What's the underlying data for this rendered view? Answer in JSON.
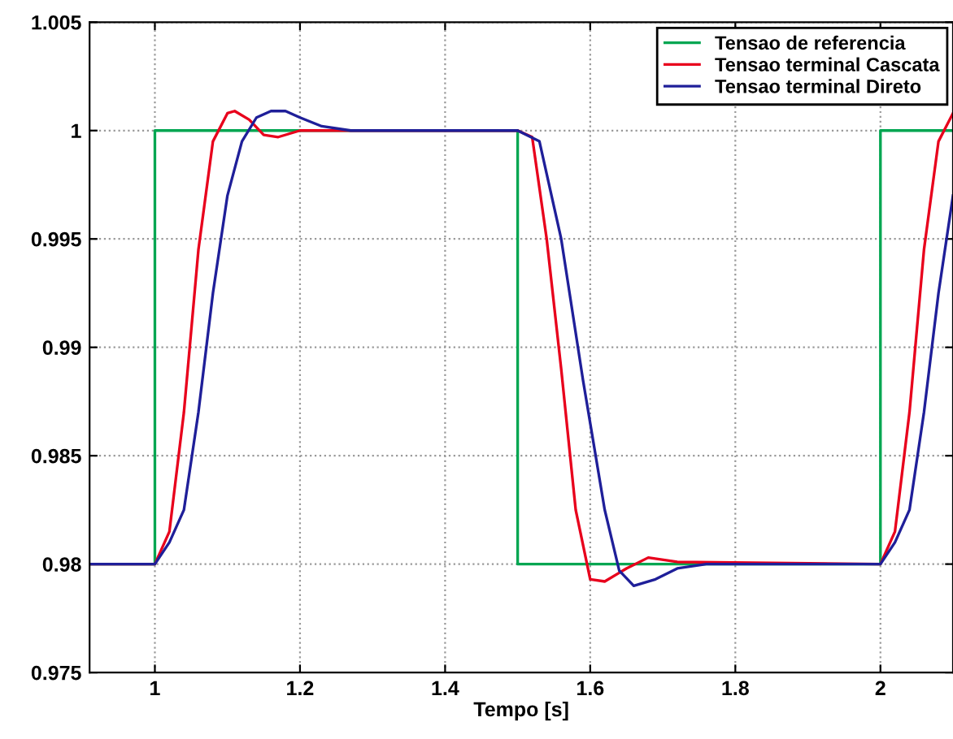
{
  "chart_data": {
    "type": "line",
    "xlabel": "Tempo [s]",
    "xlim": [
      0.91,
      2.1
    ],
    "xticks": [
      1,
      1.2,
      1.4,
      1.6,
      1.8,
      2
    ],
    "ylim": [
      0.975,
      1.005
    ],
    "yticks": [
      0.975,
      0.98,
      0.985,
      0.99,
      0.995,
      1,
      1.005
    ],
    "grid": true,
    "legend": "top right",
    "series": [
      {
        "name": "Tensao de referencia",
        "type": "step",
        "color": "#00a651",
        "x": [
          0.91,
          1.0,
          1.5,
          2.0,
          2.1
        ],
        "values": [
          0.98,
          1,
          0.98,
          1,
          1
        ]
      },
      {
        "name": "Tensao terminal Cascata",
        "color": "#e8001c",
        "x": [
          0.91,
          1.0,
          1.02,
          1.04,
          1.06,
          1.08,
          1.1,
          1.11,
          1.13,
          1.15,
          1.17,
          1.2,
          1.25,
          1.5,
          1.52,
          1.54,
          1.56,
          1.58,
          1.6,
          1.62,
          1.65,
          1.68,
          1.72,
          2.0,
          2.02,
          2.04,
          2.06,
          2.08,
          2.1
        ],
        "values": [
          0.98,
          0.98,
          0.9815,
          0.987,
          0.9945,
          0.9995,
          1.0008,
          1.0009,
          1.0005,
          0.9998,
          0.9997,
          1.0,
          1.0,
          1.0,
          0.9997,
          0.995,
          0.989,
          0.9825,
          0.9793,
          0.9792,
          0.9798,
          0.9803,
          0.9801,
          0.98,
          0.9815,
          0.987,
          0.9945,
          0.9995,
          1.0008
        ]
      },
      {
        "name": "Tensao terminal Direto",
        "color": "#1f1f99",
        "x": [
          0.91,
          1.0,
          1.02,
          1.04,
          1.06,
          1.08,
          1.1,
          1.12,
          1.14,
          1.16,
          1.18,
          1.2,
          1.23,
          1.27,
          1.5,
          1.53,
          1.56,
          1.59,
          1.62,
          1.64,
          1.66,
          1.69,
          1.72,
          1.76,
          2.0,
          2.02,
          2.04,
          2.06,
          2.08,
          2.1
        ],
        "values": [
          0.98,
          0.98,
          0.981,
          0.9825,
          0.987,
          0.9925,
          0.997,
          0.9995,
          1.0006,
          1.0009,
          1.0009,
          1.0006,
          1.0002,
          1.0,
          1.0,
          0.9995,
          0.995,
          0.9885,
          0.9825,
          0.9797,
          0.979,
          0.9793,
          0.9798,
          0.98,
          0.98,
          0.981,
          0.9825,
          0.987,
          0.9925,
          0.997
        ]
      }
    ]
  }
}
